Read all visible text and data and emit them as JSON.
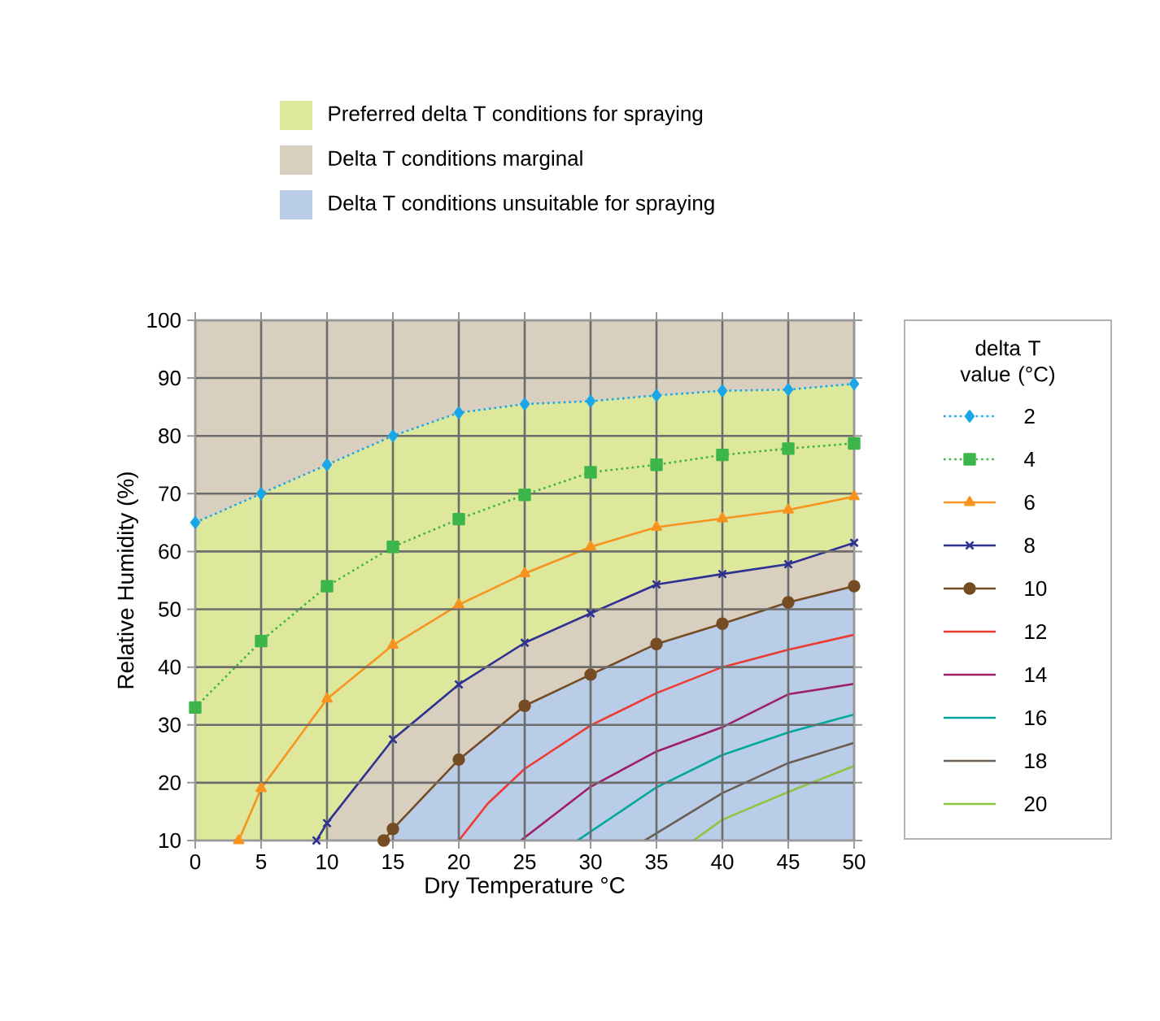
{
  "chart_data": {
    "type": "line",
    "xlabel": "Dry Temperature °C",
    "ylabel": "Relative Humidity (%)",
    "legend_title": "delta T value (°C)",
    "xlim": [
      0,
      50
    ],
    "ylim": [
      10,
      100
    ],
    "xticks": [
      0,
      5,
      10,
      15,
      20,
      25,
      30,
      35,
      40,
      45,
      50
    ],
    "yticks": [
      10,
      20,
      30,
      40,
      50,
      60,
      70,
      80,
      90,
      100
    ],
    "grid": true,
    "legend": "right",
    "series": [
      {
        "name": "2",
        "color": "#1aa7e8",
        "marker": "diamond",
        "line_style": "dotted",
        "x": [
          0,
          5,
          10,
          15,
          20,
          25,
          30,
          35,
          40,
          45,
          50
        ],
        "values": [
          65,
          70,
          75,
          80,
          84,
          85.5,
          86,
          87,
          87.8,
          88,
          89
        ]
      },
      {
        "name": "4",
        "color": "#3cb54a",
        "marker": "square",
        "line_style": "dotted",
        "x": [
          0,
          5,
          10,
          15,
          20,
          25,
          30,
          35,
          40,
          45,
          50
        ],
        "values": [
          33,
          44.5,
          54,
          60.8,
          65.6,
          69.8,
          73.7,
          75,
          76.7,
          77.8,
          78.7
        ]
      },
      {
        "name": "6",
        "color": "#f7931e",
        "marker": "triangle",
        "line_style": "solid",
        "x": [
          3.3,
          5,
          10,
          15,
          20,
          25,
          30,
          35,
          40,
          45,
          50
        ],
        "values": [
          10,
          19,
          34.5,
          43.8,
          50.8,
          56.2,
          60.8,
          64.2,
          65.7,
          67.2,
          69.5
        ]
      },
      {
        "name": "8",
        "color": "#2e3192",
        "marker": "cross",
        "line_style": "solid",
        "x": [
          9.2,
          10,
          15,
          20,
          25,
          30,
          35,
          40,
          45,
          50
        ],
        "values": [
          10,
          13,
          27.5,
          37,
          44.2,
          49.3,
          54.3,
          56.1,
          57.8,
          61.5
        ]
      },
      {
        "name": "10",
        "color": "#754c24",
        "marker": "circle",
        "line_style": "solid",
        "x": [
          14.3,
          15,
          20,
          25,
          30,
          35,
          40,
          45,
          50
        ],
        "values": [
          10,
          12,
          24,
          33.3,
          38.7,
          44,
          47.5,
          51.2,
          54
        ]
      },
      {
        "name": "12",
        "color": "#ed3b2f",
        "marker": "none",
        "line_style": "solid",
        "x": [
          20,
          22.2,
          25,
          30,
          35,
          40,
          45,
          50
        ],
        "values": [
          10,
          16.4,
          22.4,
          29.9,
          35.5,
          40,
          43,
          45.6
        ]
      },
      {
        "name": "14",
        "color": "#9e1f63",
        "marker": "none",
        "line_style": "solid",
        "x": [
          24.7,
          30,
          35,
          40,
          45,
          50
        ],
        "values": [
          10,
          19.3,
          25.4,
          29.6,
          35.3,
          37.1
        ]
      },
      {
        "name": "16",
        "color": "#00a79d",
        "marker": "none",
        "line_style": "solid",
        "x": [
          29,
          35,
          40,
          45,
          50
        ],
        "values": [
          10,
          19.2,
          24.8,
          28.7,
          31.8
        ]
      },
      {
        "name": "18",
        "color": "#6b5d4f",
        "marker": "none",
        "line_style": "solid",
        "x": [
          34.1,
          40,
          45,
          50
        ],
        "values": [
          10,
          18.2,
          23.4,
          26.9
        ]
      },
      {
        "name": "20",
        "color": "#8dc63f",
        "marker": "none",
        "line_style": "solid",
        "x": [
          37.8,
          40,
          45,
          50
        ],
        "values": [
          10,
          13.6,
          18.4,
          22.9
        ]
      },
      {
        "type": "area",
        "name": "Preferred delta T conditions for spraying",
        "color": "#dde89c",
        "x": [
          0,
          5,
          10,
          15,
          20,
          25,
          30,
          35,
          40,
          45,
          50
        ],
        "values": [
          65,
          70,
          75,
          80,
          84,
          85.5,
          86,
          87,
          87.8,
          88,
          89
        ]
      },
      {
        "type": "area",
        "name": "Delta T conditions marginal",
        "color": "#d8cfbf",
        "x": [
          10,
          15,
          20,
          25,
          30,
          35,
          40,
          45,
          50
        ],
        "values": [
          13,
          27.5,
          37,
          44.2,
          49.3,
          54.3,
          56.1,
          57.8,
          61.5
        ]
      },
      {
        "type": "area",
        "name": "Delta T conditions unsuitable for spraying",
        "color": "#b9cce8",
        "x": [
          15,
          20,
          25,
          30,
          35,
          40,
          45,
          50
        ],
        "values": [
          12,
          24,
          33.3,
          38.7,
          44,
          47.5,
          51.2,
          54
        ]
      }
    ]
  }
}
